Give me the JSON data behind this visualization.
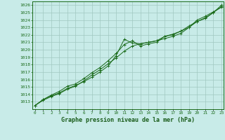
{
  "title": "Graphe pression niveau de la mer (hPa)",
  "x_hours": [
    0,
    1,
    2,
    3,
    4,
    5,
    6,
    7,
    8,
    9,
    10,
    11,
    12,
    13,
    14,
    15,
    16,
    17,
    18,
    19,
    20,
    21,
    22,
    23
  ],
  "series1": [
    1012.5,
    1013.3,
    1013.8,
    1014.2,
    1014.8,
    1015.2,
    1015.7,
    1016.3,
    1017.0,
    1017.8,
    1019.2,
    1021.4,
    1020.9,
    1020.8,
    1021.0,
    1021.2,
    1021.5,
    1021.8,
    1022.2,
    1023.0,
    1024.0,
    1024.5,
    1025.1,
    1025.7
  ],
  "series2": [
    1012.5,
    1013.3,
    1013.9,
    1014.4,
    1015.1,
    1015.4,
    1016.1,
    1016.9,
    1017.6,
    1018.5,
    1019.5,
    1020.7,
    1021.2,
    1020.5,
    1020.8,
    1021.0,
    1021.8,
    1022.0,
    1022.5,
    1023.2,
    1023.8,
    1024.2,
    1025.0,
    1025.8
  ],
  "series3": [
    1012.5,
    1013.2,
    1013.7,
    1014.1,
    1014.7,
    1015.1,
    1015.8,
    1016.6,
    1017.3,
    1018.1,
    1018.9,
    1019.8,
    1020.5,
    1020.8,
    1021.0,
    1021.2,
    1021.8,
    1022.1,
    1022.5,
    1023.0,
    1023.8,
    1024.3,
    1025.0,
    1026.0
  ],
  "ylim_min": 1012,
  "ylim_max": 1026.5,
  "yticks": [
    1013,
    1014,
    1015,
    1016,
    1017,
    1018,
    1019,
    1020,
    1021,
    1022,
    1023,
    1024,
    1025,
    1026
  ],
  "line_color": "#1a6b1a",
  "bg_color": "#c8ebe8",
  "grid_color": "#a0c8c0",
  "title_color": "#1a5c1a"
}
